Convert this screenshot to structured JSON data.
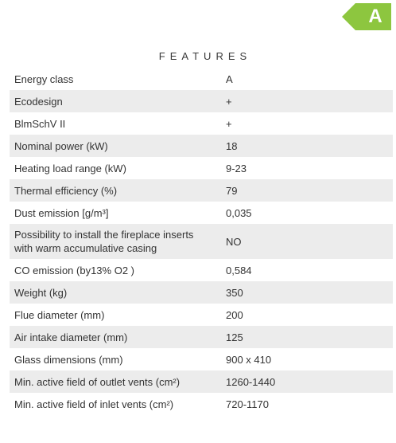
{
  "badge": {
    "letter": "A",
    "color": "#8dc63f"
  },
  "section": {
    "title": "FEATURES"
  },
  "features": [
    {
      "label": "Energy class",
      "value": "A"
    },
    {
      "label": "Ecodesign",
      "value": "+"
    },
    {
      "label": "BlmSchV II",
      "value": "+"
    },
    {
      "label": "Nominal power (kW)",
      "value": "18"
    },
    {
      "label": "Heating load range (kW)",
      "value": "9-23"
    },
    {
      "label": "Thermal efficiency (%)",
      "value": "79"
    },
    {
      "label": "Dust emission [g/m³]",
      "value": "0,035"
    },
    {
      "label": "Possibility to install the fireplace inserts with warm accumulative casing",
      "value": "NO"
    },
    {
      "label": "CO emission (by13% O2 )",
      "value": "0,584"
    },
    {
      "label": "Weight (kg)",
      "value": "350"
    },
    {
      "label": "Flue diameter (mm)",
      "value": "200"
    },
    {
      "label": "Air intake diameter (mm)",
      "value": "125"
    },
    {
      "label": "Glass dimensions (mm)",
      "value": "900 x 410"
    },
    {
      "label": "Min. active field of outlet vents (cm²)",
      "value": "1260-1440"
    },
    {
      "label": "Min. active field of inlet vents (cm²)",
      "value": "720-1170"
    }
  ]
}
